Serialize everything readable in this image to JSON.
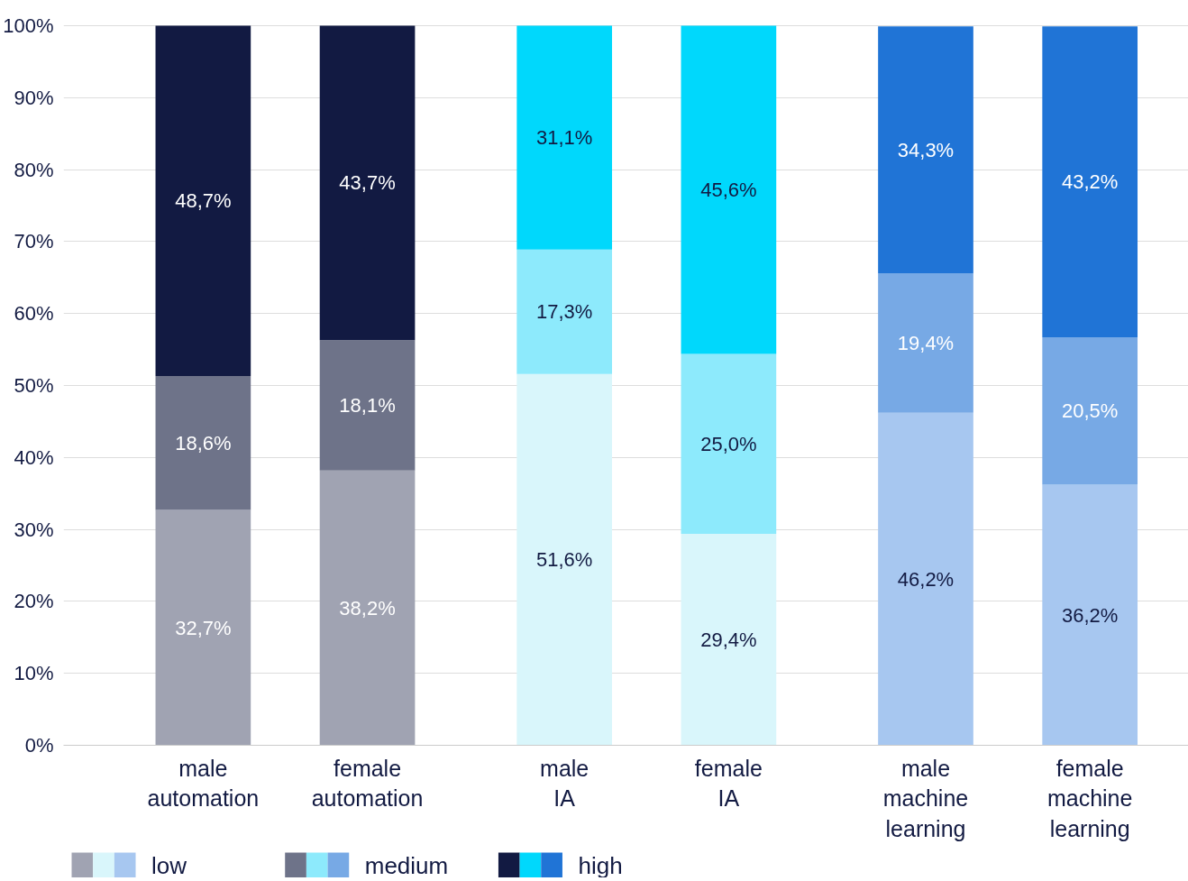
{
  "chart_data": {
    "type": "bar",
    "stacked": true,
    "categories": [
      "male\nautomation",
      "female\nautomation",
      "male\nIA",
      "female\nIA",
      "male\nmachine\nlearning",
      "female\nmachine\nlearning"
    ],
    "series": [
      {
        "name": "low",
        "colors": [
          "#a0a3b2",
          "#a0a3b2",
          "#d9f6fb",
          "#d9f6fb",
          "#a7c7f0",
          "#a7c7f0"
        ],
        "values": [
          32.7,
          38.2,
          51.6,
          29.4,
          46.2,
          36.2
        ],
        "value_labels": [
          "32,7%",
          "38,2%",
          "51,6%",
          "29,4%",
          "46,2%",
          "36,2%"
        ]
      },
      {
        "name": "medium",
        "colors": [
          "#6e7389",
          "#6e7389",
          "#8deafc",
          "#8deafc",
          "#77a9e5",
          "#77a9e5"
        ],
        "values": [
          18.6,
          18.1,
          17.3,
          25.0,
          19.4,
          20.5
        ],
        "value_labels": [
          "18,6%",
          "18,1%",
          "17,3%",
          "25,0%",
          "19,4%",
          "20,5%"
        ]
      },
      {
        "name": "high",
        "colors": [
          "#121a42",
          "#121a42",
          "#00d8fc",
          "#00d8fc",
          "#2074d6",
          "#2074d6"
        ],
        "values": [
          48.7,
          43.7,
          31.1,
          45.6,
          34.3,
          43.2
        ],
        "value_labels": [
          "48,7%",
          "43,7%",
          "31,1%",
          "45,6%",
          "34,3%",
          "43,2%"
        ]
      }
    ],
    "ylim": [
      0,
      100
    ],
    "yticks": [
      {
        "value": 0,
        "label": "0%"
      },
      {
        "value": 10,
        "label": "10%"
      },
      {
        "value": 20,
        "label": "20%"
      },
      {
        "value": 30,
        "label": "30%"
      },
      {
        "value": 40,
        "label": "40%"
      },
      {
        "value": 50,
        "label": "50%"
      },
      {
        "value": 60,
        "label": "60%"
      },
      {
        "value": 70,
        "label": "70%"
      },
      {
        "value": 80,
        "label": "80%"
      },
      {
        "value": 90,
        "label": "90%"
      },
      {
        "value": 100,
        "label": "100%"
      }
    ],
    "grid": "y",
    "legend": "bottom left"
  }
}
